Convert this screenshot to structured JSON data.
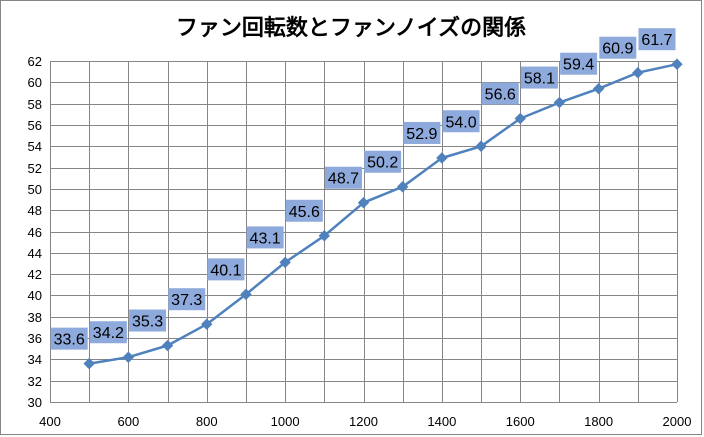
{
  "chart_data": {
    "type": "line",
    "title": "ファン回転数とファンノイズの関係",
    "x": [
      500,
      600,
      700,
      800,
      900,
      1000,
      1100,
      1200,
      1300,
      1400,
      1500,
      1600,
      1700,
      1800,
      1900,
      2000
    ],
    "series": [
      {
        "values": [
          33.6,
          34.2,
          35.3,
          37.3,
          40.1,
          43.1,
          45.6,
          48.7,
          50.2,
          52.9,
          54.0,
          56.6,
          58.1,
          59.4,
          60.9,
          61.7
        ],
        "labels": [
          "33.6",
          "34.2",
          "35.3",
          "37.3",
          "40.1",
          "43.1",
          "45.6",
          "48.7",
          "50.2",
          "52.9",
          "54.0",
          "56.6",
          "58.1",
          "59.4",
          "60.9",
          "61.7"
        ],
        "color": "#4F81BD"
      }
    ],
    "xlim": [
      400,
      2000
    ],
    "ylim": [
      30,
      62
    ],
    "xticks": [
      400,
      600,
      800,
      1000,
      1200,
      1400,
      1600,
      1800,
      2000
    ],
    "yticks": [
      30,
      32,
      34,
      36,
      38,
      40,
      42,
      44,
      46,
      48,
      50,
      52,
      54,
      56,
      58,
      60,
      62
    ],
    "grid": true,
    "label_box_color": "#8EA9DB",
    "gridline_color": "#868686"
  }
}
